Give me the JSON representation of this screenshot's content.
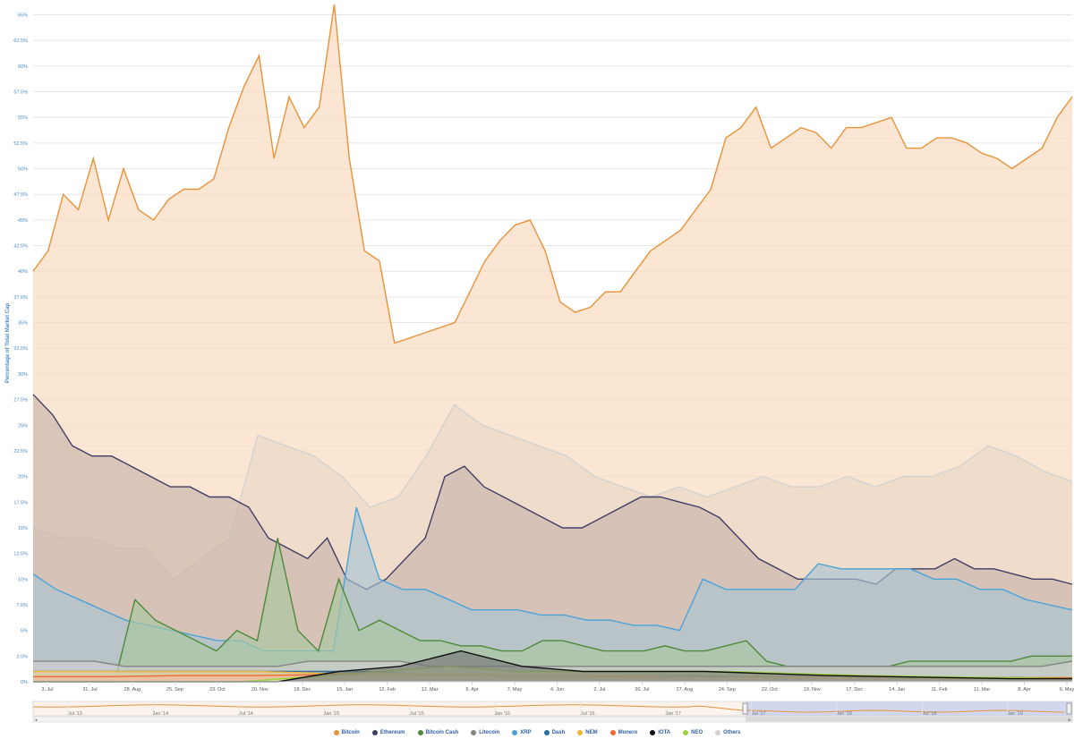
{
  "chart_data": {
    "type": "area",
    "ylabel": "Percentage of Total Market Cap",
    "ylim": [
      0,
      66
    ],
    "y_ticks": [
      0,
      2.5,
      5,
      7.5,
      10,
      12.5,
      15,
      17.5,
      20,
      22.5,
      25,
      27.5,
      30,
      32.5,
      35,
      37.5,
      40,
      42.5,
      45,
      47.5,
      50,
      52.5,
      55,
      57.5,
      60,
      62.5,
      65
    ],
    "y_tick_labels": [
      "0%",
      "2.5%",
      "5%",
      "7.5%",
      "10%",
      "12.5%",
      "15%",
      "17.5%",
      "20%",
      "22.5%",
      "25%",
      "27.5%",
      "30%",
      "32.5%",
      "35%",
      "37.5%",
      "40%",
      "42.5%",
      "45%",
      "47.5%",
      "50%",
      "52.5%",
      "55%",
      "57.5%",
      "60%",
      "62.5%",
      "65%"
    ],
    "x_tick_labels": [
      "3. Jul",
      "31. Jul",
      "28. Aug",
      "25. Sep",
      "23. Oct",
      "20. Nov",
      "18. Dec",
      "15. Jan",
      "12. Feb",
      "12. Mar",
      "9. Apr",
      "7. May",
      "4. Jun",
      "2. Jul",
      "30. Jul",
      "27. Aug",
      "24. Sep",
      "22. Oct",
      "19. Nov",
      "17. Dec",
      "14. Jan",
      "11. Feb",
      "11. Mar",
      "8. Apr",
      "6. May"
    ],
    "grid": true,
    "legend_position": "bottom",
    "series": [
      {
        "name": "Bitcoin",
        "color": "#e8923a",
        "fill": "#f9d8bb",
        "values": [
          40,
          42,
          47.5,
          46,
          51,
          45,
          50,
          46,
          45,
          47,
          48,
          48,
          49,
          54,
          58,
          61,
          51,
          57,
          54,
          56,
          66,
          51,
          42,
          41,
          33,
          33.5,
          34,
          34.5,
          35,
          38,
          41,
          43,
          44.5,
          45,
          42,
          37,
          36,
          36.5,
          38,
          38,
          40,
          42,
          43,
          44,
          46,
          48,
          53,
          54,
          56,
          52,
          53,
          54,
          53.5,
          52,
          54,
          54,
          54.5,
          55,
          52,
          52,
          53,
          53,
          52.5,
          51.5,
          51,
          50,
          51,
          52,
          55,
          57
        ]
      },
      {
        "name": "Ethereum",
        "color": "#3f3e66",
        "fill": "#c7b3ab",
        "values": [
          28,
          26,
          23,
          22,
          22,
          21,
          20,
          19,
          19,
          18,
          18,
          17,
          14,
          13,
          12,
          14,
          10,
          9,
          10,
          12,
          14,
          20,
          21,
          19,
          18,
          17,
          16,
          15,
          15,
          16,
          17,
          18,
          18,
          17.5,
          17,
          16,
          14,
          12,
          11,
          10,
          10,
          10,
          10,
          9.5,
          11,
          11,
          11,
          12,
          11,
          11,
          10.5,
          10,
          10,
          9.5
        ]
      },
      {
        "name": "Bitcoin Cash",
        "color": "#4d8a3a",
        "fill": "#a7c8a0",
        "values": [
          0,
          0,
          0,
          0,
          0,
          8,
          6,
          5,
          4,
          3,
          5,
          4,
          14,
          5,
          3,
          10,
          5,
          6,
          5,
          4,
          4,
          3.5,
          3.5,
          3,
          3,
          4,
          4,
          3.5,
          3,
          3,
          3,
          3.5,
          3,
          3,
          3.5,
          4,
          2,
          1.5,
          1.5,
          1.5,
          1.5,
          1.5,
          1.5,
          2,
          2,
          2,
          2,
          2,
          2,
          2.5,
          2.5,
          2.5
        ]
      },
      {
        "name": "Litecoin",
        "color": "#838383",
        "fill": "#cfcfcf",
        "values": [
          2,
          2,
          2,
          1.5,
          1.5,
          1.5,
          1.5,
          1.5,
          1.5,
          2,
          2,
          2,
          2,
          1.5,
          1.5,
          1.5,
          1.5,
          1.5,
          1.5,
          1.5,
          1.5,
          1.5,
          1.5,
          1.5,
          1.5,
          1.5,
          1.5,
          1.5,
          1.5,
          1.5,
          1.5,
          1.5,
          1.5,
          1.5,
          2
        ]
      },
      {
        "name": "XRP",
        "color": "#4aa3d8",
        "fill": "#a9c5d4",
        "values": [
          10.5,
          9,
          8,
          7,
          6,
          5.5,
          5,
          4.5,
          4,
          4,
          3,
          3,
          3,
          3,
          17,
          10,
          9,
          9,
          8,
          7,
          7,
          7,
          6.5,
          6.5,
          6,
          6,
          5.5,
          5.5,
          5,
          10,
          9,
          9,
          9,
          9,
          11.5,
          11,
          11,
          11,
          11,
          10,
          10,
          9,
          9,
          8,
          7.5,
          7
        ]
      },
      {
        "name": "Dash",
        "color": "#2f6e9e",
        "fill": "#8fb0c8",
        "values": [
          1,
          1,
          1,
          1,
          1,
          1,
          1,
          0.8,
          0.8,
          0.7,
          0.6,
          0.6,
          0.6,
          0.5,
          0.5,
          0.5,
          0.5,
          0.4,
          0.4,
          0.3
        ]
      },
      {
        "name": "NEM",
        "color": "#f2b53a",
        "fill": "#f5d99a",
        "values": [
          1,
          1,
          1,
          1,
          0.8,
          0.8,
          0.8,
          0.7,
          0.6,
          0.5,
          0.5,
          0.4,
          0.3,
          0.3,
          0.2
        ]
      },
      {
        "name": "Monero",
        "color": "#ee6a2f",
        "fill": "#f4b89c",
        "values": [
          0.5,
          0.5,
          0.6,
          0.6,
          0.7,
          0.7,
          0.6,
          0.5,
          0.5,
          0.5,
          0.5,
          0.5,
          0.4,
          0.4,
          0.4
        ]
      },
      {
        "name": "IOTA",
        "color": "#111111",
        "fill": "#777777",
        "values": [
          0,
          0,
          0,
          0,
          0,
          1,
          1.5,
          3,
          1.5,
          1,
          1,
          1,
          0.8,
          0.6,
          0.5,
          0.4,
          0.3,
          0.3
        ]
      },
      {
        "name": "NEO",
        "color": "#9bd43a",
        "fill": "#cfe9a0",
        "values": [
          0,
          0,
          0,
          0,
          0.5,
          1,
          1.5,
          1,
          1,
          1,
          1,
          0.8,
          0.6,
          0.5,
          0.4,
          0.3
        ]
      },
      {
        "name": "Others",
        "color": "#d2d2d2",
        "fill": "#ead7c4",
        "values": [
          15,
          14,
          14,
          13,
          13,
          10,
          12,
          14,
          24,
          23,
          22,
          20,
          17,
          18,
          22,
          27,
          25,
          24,
          23,
          22,
          20,
          19,
          18,
          19,
          18,
          19,
          20,
          19,
          19,
          20,
          19,
          20,
          20,
          21,
          23,
          22,
          20.5,
          19.5
        ]
      }
    ],
    "navigator": {
      "tick_labels": [
        "Jul '13",
        "Jan '14",
        "Jul '14",
        "Jan '15",
        "Jul '15",
        "Jan '16",
        "Jul '16",
        "Jan '17",
        "Jul '17",
        "Jan '18",
        "Jul '18",
        "Jan '19"
      ]
    }
  }
}
